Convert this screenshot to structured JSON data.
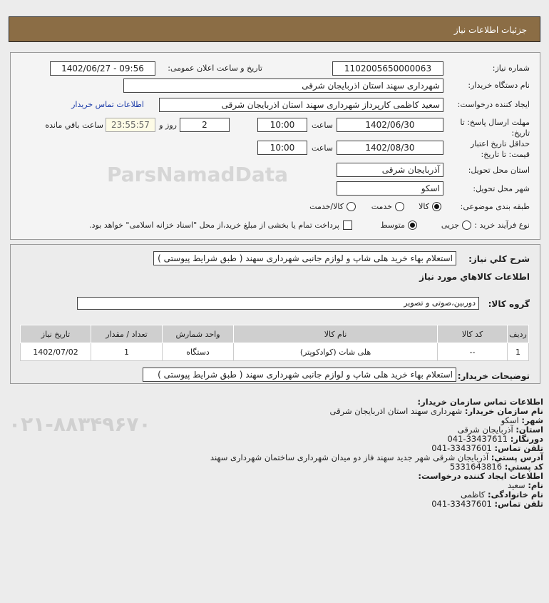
{
  "header": {
    "title": "جزئیات اطلاعات نیاز"
  },
  "form": {
    "need_number_label": "شماره نیاز:",
    "need_number": "1102005650000063",
    "announce_label": "تاریخ و ساعت اعلان عمومی:",
    "announce_value": "1402/06/27 - 09:56",
    "buyer_org_label": "نام دستگاه خریدار:",
    "buyer_org": "شهرداری سهند استان اذربایجان شرقی",
    "creator_label": "ایجاد کننده درخواست:",
    "creator": "سعید کاظمی کارپرداز شهرداری سهند استان اذربایجان شرقی",
    "contact_link": "اطلاعات تماس خریدار",
    "deadline_label": "مهلت ارسال پاسخ: تا تاریخ:",
    "deadline_date": "1402/06/30",
    "time_label": "ساعت",
    "deadline_time": "10:00",
    "days": "2",
    "days_label": "روز و",
    "remaining": "23:55:57",
    "remaining_label": "ساعت باقي مانده",
    "validity_label": "حداقل تاریخ اعتبار قیمت: تا تاریخ:",
    "validity_date": "1402/08/30",
    "validity_time": "10:00",
    "province_label": "استان محل تحویل:",
    "province": "آذربایجان شرقی",
    "city_label": "شهر محل تحویل:",
    "city": "اسکو",
    "category_label": "طبقه بندی موضوعی:",
    "category_options": [
      "کالا",
      "خدمت",
      "کالا/خدمت"
    ],
    "category_selected": "کالا",
    "process_label": "نوع فرآیند خرید :",
    "process_options": [
      "جزیی",
      "متوسط"
    ],
    "process_selected": "متوسط",
    "payment_note": "پرداخت تمام یا بخشی از مبلغ خرید،از محل \"اسناد خزانه اسلامی\" خواهد بود."
  },
  "details": {
    "summary_label": "شرح کلي نیاز:",
    "summary": "استعلام بهاء خرید هلی شاپ و لوازم جانبی شهرداری سهند ( طبق شرایط پیوستی )",
    "goods_title": "اطلاعات کالاهاي مورد نیاز",
    "group_label": "گروه کالا:",
    "group": "دوربین،صوتی و تصویر",
    "table": {
      "headers": [
        "ردیف",
        "کد کالا",
        "نام کالا",
        "واحد شمارش",
        "تعداد / مقدار",
        "تاریخ نیاز"
      ],
      "rows": [
        [
          "1",
          "--",
          "هلی شات (کوادکوپتر)",
          "دستگاه",
          "1",
          "1402/07/02"
        ]
      ]
    },
    "buyer_notes_label": "توضیحات خریدار:",
    "buyer_notes": "استعلام بهاء خرید هلی شاپ و لوازم جانبی شهرداری سهند ( طبق شرایط پیوستی )"
  },
  "contact": {
    "title": "اطلاعات تماس سازمان خریدار:",
    "lines": [
      {
        "k": "نام سازمان خریدار:",
        "v": "شهرداری سهند استان اذربایجان شرقی"
      },
      {
        "k": "شهر:",
        "v": "اسکو"
      },
      {
        "k": "استان:",
        "v": "آذربایجان شرقی"
      },
      {
        "k": "دورنگار:",
        "v": "33437611-041"
      },
      {
        "k": "تلفن تماس:",
        "v": "33437601-041"
      },
      {
        "k": "آدرس پستي:",
        "v": "آذربایجان شرقی شهر جدید سهند فاز دو میدان شهرداری ساختمان شهرداری سهند"
      },
      {
        "k": "کد پستي:",
        "v": "5331643816"
      }
    ],
    "creator_title": "اطلاعات ایجاد کننده درخواست:",
    "creator_lines": [
      {
        "k": "نام:",
        "v": "سعید"
      },
      {
        "k": "نام خانوادگی:",
        "v": "کاظمی"
      },
      {
        "k": "تلفن تماس:",
        "v": "33437601-041"
      }
    ]
  },
  "watermark": {
    "brand": "ParsNamadData",
    "phone": "۰۲۱-۸۸۳۴۹۶۷۰"
  },
  "colors": {
    "header": "#8b6d45",
    "link": "#1a3aa8",
    "remaining_bg": "#fdfbe6"
  }
}
